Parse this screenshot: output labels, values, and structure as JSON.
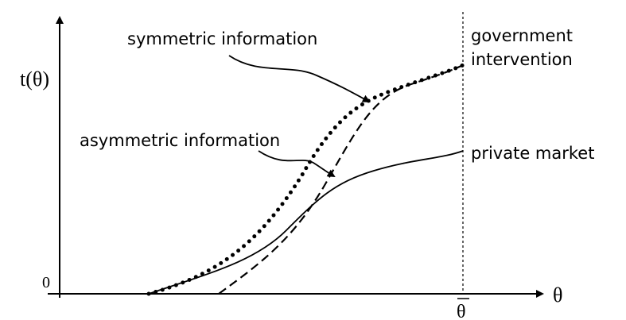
{
  "axes": {
    "y_label": "t(θ)",
    "x_label": "θ",
    "origin": "0",
    "x_max": "θ"
  },
  "curves": [
    {
      "label": "symmetric information"
    },
    {
      "label": "asymmetric information"
    },
    {
      "label_lines": [
        "government",
        "intervention"
      ]
    },
    {
      "label": "private market"
    }
  ]
}
